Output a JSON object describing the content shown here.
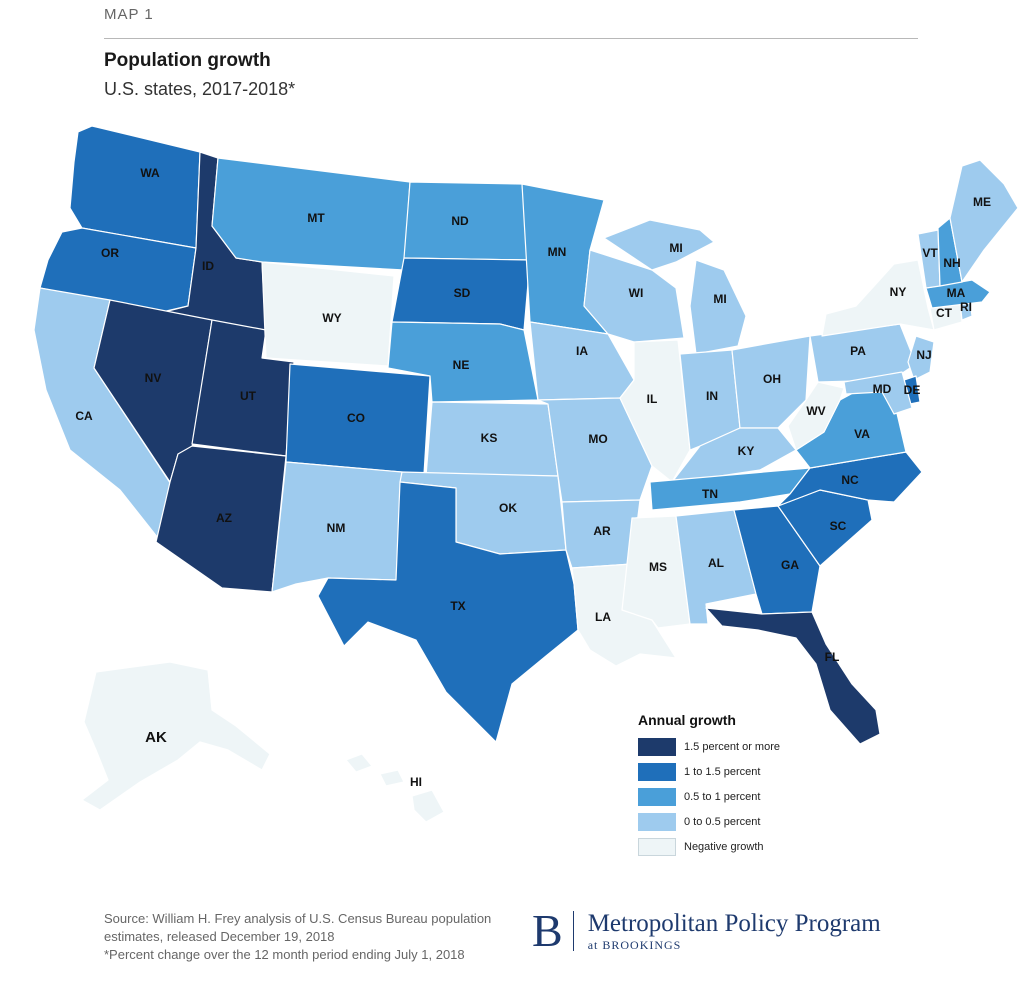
{
  "header": {
    "overline": "MAP 1",
    "title": "Population growth",
    "subtitle": "U.S. states, 2017-2018*"
  },
  "categories": {
    "c4": {
      "label": "1.5 percent or more",
      "color": "#1d3a6b"
    },
    "c3": {
      "label": "1 to 1.5 percent",
      "color": "#1f6fba"
    },
    "c2": {
      "label": "0.5 to 1 percent",
      "color": "#4a9fd9"
    },
    "c1": {
      "label": "0 to 0.5 percent",
      "color": "#9ecbee"
    },
    "c0": {
      "label": "Negative growth",
      "color": "#eef5f7"
    }
  },
  "legend": {
    "title": "Annual growth",
    "order": [
      "c4",
      "c3",
      "c2",
      "c1",
      "c0"
    ]
  },
  "states": [
    {
      "abbr": "WA",
      "cat": "c3"
    },
    {
      "abbr": "OR",
      "cat": "c3"
    },
    {
      "abbr": "CA",
      "cat": "c1"
    },
    {
      "abbr": "ID",
      "cat": "c4"
    },
    {
      "abbr": "NV",
      "cat": "c4"
    },
    {
      "abbr": "UT",
      "cat": "c4"
    },
    {
      "abbr": "AZ",
      "cat": "c4"
    },
    {
      "abbr": "MT",
      "cat": "c2"
    },
    {
      "abbr": "WY",
      "cat": "c0"
    },
    {
      "abbr": "CO",
      "cat": "c3"
    },
    {
      "abbr": "NM",
      "cat": "c1"
    },
    {
      "abbr": "ND",
      "cat": "c2"
    },
    {
      "abbr": "SD",
      "cat": "c3"
    },
    {
      "abbr": "NE",
      "cat": "c2"
    },
    {
      "abbr": "KS",
      "cat": "c1"
    },
    {
      "abbr": "OK",
      "cat": "c1"
    },
    {
      "abbr": "TX",
      "cat": "c3"
    },
    {
      "abbr": "MN",
      "cat": "c2"
    },
    {
      "abbr": "IA",
      "cat": "c1"
    },
    {
      "abbr": "MO",
      "cat": "c1"
    },
    {
      "abbr": "AR",
      "cat": "c1"
    },
    {
      "abbr": "LA",
      "cat": "c0"
    },
    {
      "abbr": "WI",
      "cat": "c1"
    },
    {
      "abbr": "IL",
      "cat": "c0"
    },
    {
      "abbr": "MI",
      "cat": "c1"
    },
    {
      "abbr": "MI",
      "cat": "c1"
    },
    {
      "abbr": "IN",
      "cat": "c1"
    },
    {
      "abbr": "OH",
      "cat": "c1"
    },
    {
      "abbr": "KY",
      "cat": "c1"
    },
    {
      "abbr": "TN",
      "cat": "c2"
    },
    {
      "abbr": "MS",
      "cat": "c0"
    },
    {
      "abbr": "AL",
      "cat": "c1"
    },
    {
      "abbr": "GA",
      "cat": "c3"
    },
    {
      "abbr": "FL",
      "cat": "c4"
    },
    {
      "abbr": "SC",
      "cat": "c3"
    },
    {
      "abbr": "NC",
      "cat": "c3"
    },
    {
      "abbr": "VA",
      "cat": "c2"
    },
    {
      "abbr": "WV",
      "cat": "c0"
    },
    {
      "abbr": "PA",
      "cat": "c1"
    },
    {
      "abbr": "NY",
      "cat": "c0"
    },
    {
      "abbr": "NJ",
      "cat": "c1"
    },
    {
      "abbr": "DE",
      "cat": "c3"
    },
    {
      "abbr": "MD",
      "cat": "c1"
    },
    {
      "abbr": "CT",
      "cat": "c0"
    },
    {
      "abbr": "RI",
      "cat": "c1"
    },
    {
      "abbr": "MA",
      "cat": "c2"
    },
    {
      "abbr": "VT",
      "cat": "c1"
    },
    {
      "abbr": "NH",
      "cat": "c2"
    },
    {
      "abbr": "ME",
      "cat": "c1"
    },
    {
      "abbr": "AK",
      "cat": "c0"
    },
    {
      "abbr": "HI",
      "cat": "c0"
    }
  ],
  "source": {
    "line1": "Source: William H. Frey analysis of U.S. Census Bureau population estimates, released December 19, 2018",
    "line2": "*Percent change over the 12 month period ending July 1, 2018"
  },
  "brand": {
    "mark": "B",
    "name": "Metropolitan Policy Program",
    "sub": "at BROOKINGS"
  }
}
